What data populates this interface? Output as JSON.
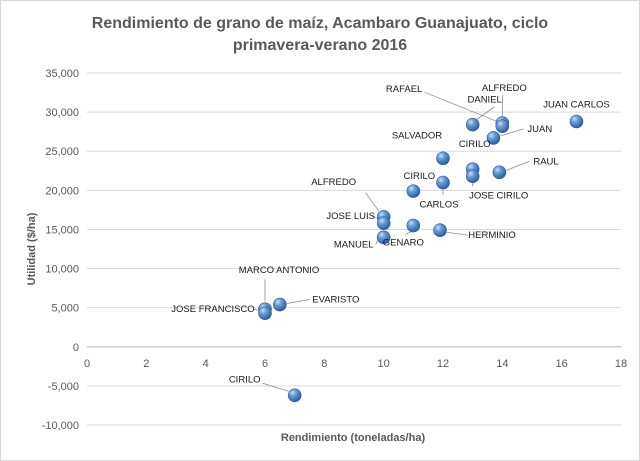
{
  "chart_data": {
    "type": "scatter",
    "title_line1": "Rendimiento de grano de maíz, Acambaro Guanajuato, ciclo",
    "title_line2": "primavera-verano 2016",
    "xlabel": "Rendimiento  (toneladas/ha)",
    "ylabel": "Utilidad  ($/ha)",
    "xlim": [
      0,
      18
    ],
    "ylim": [
      -10000,
      35000
    ],
    "x_ticks": [
      "0",
      "2",
      "4",
      "6",
      "8",
      "10",
      "12",
      "14",
      "16",
      "18"
    ],
    "y_ticks": [
      "-10,000",
      "-5,000",
      "0",
      "5,000",
      "10,000",
      "15,000",
      "20,000",
      "25,000",
      "30,000",
      "35,000"
    ],
    "grid": "horizontal",
    "points": [
      {
        "x": 16.5,
        "y": 28800,
        "label": "JUAN CARLOS"
      },
      {
        "x": 14.0,
        "y": 28600,
        "label": "ALFREDO"
      },
      {
        "x": 13.0,
        "y": 28400,
        "label": "DANIEL"
      },
      {
        "x": 14.0,
        "y": 28200,
        "label": "RAFAEL"
      },
      {
        "x": 13.7,
        "y": 26700,
        "label": "JUAN"
      },
      {
        "x": 12.0,
        "y": 24100,
        "label": "SALVADOR"
      },
      {
        "x": 13.0,
        "y": 22700,
        "label": "CIRILO"
      },
      {
        "x": 13.9,
        "y": 22300,
        "label": "RAUL"
      },
      {
        "x": 13.0,
        "y": 21800,
        "label": "JOSE CIRILO"
      },
      {
        "x": 12.0,
        "y": 21000,
        "label": "CARLOS"
      },
      {
        "x": 11.0,
        "y": 19900,
        "label": "CIRILO"
      },
      {
        "x": 10.0,
        "y": 16600,
        "label": "ALFREDO"
      },
      {
        "x": 10.0,
        "y": 15800,
        "label": "JOSE LUIS"
      },
      {
        "x": 11.0,
        "y": 15500,
        "label": "GENARO"
      },
      {
        "x": 11.9,
        "y": 14900,
        "label": "HERMINIO"
      },
      {
        "x": 10.0,
        "y": 14000,
        "label": "MANUEL"
      },
      {
        "x": 6.5,
        "y": 5400,
        "label": "EVARISTO"
      },
      {
        "x": 6.0,
        "y": 4800,
        "label": "MARCO ANTONIO"
      },
      {
        "x": 6.0,
        "y": 4300,
        "label": "JOSE FRANCISCO"
      },
      {
        "x": 7.0,
        "y": -6200,
        "label": "CIRILO"
      }
    ]
  }
}
